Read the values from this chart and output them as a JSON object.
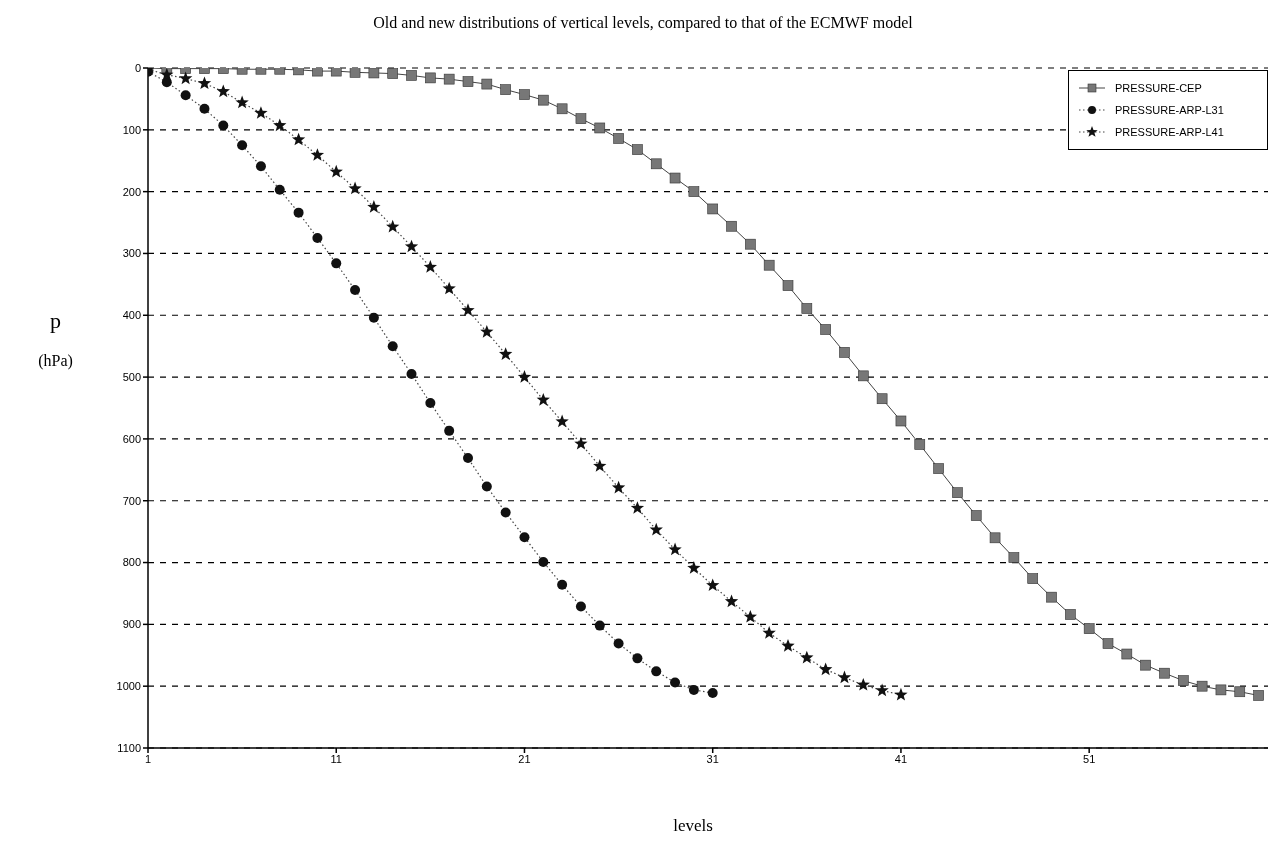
{
  "chart_data": {
    "type": "line",
    "title": "Old and new distributions of vertical levels, compared to that of the ECMWF model",
    "xlabel": "levels",
    "ylabel": "p\n(hPa)",
    "xlim": [
      1,
      60.5
    ],
    "xticks": [
      1,
      11,
      21,
      31,
      41,
      51
    ],
    "ylim": [
      1100,
      0
    ],
    "yticks": [
      0,
      100,
      200,
      300,
      400,
      500,
      600,
      700,
      800,
      900,
      1000,
      1100
    ],
    "grid": "y",
    "legend": "top right",
    "series": [
      {
        "name": "PRESSURE-CEP",
        "color": "#777777",
        "marker": "square",
        "line_style": "solid",
        "x": [
          1,
          2,
          3,
          4,
          5,
          6,
          7,
          8,
          9,
          10,
          11,
          12,
          13,
          14,
          15,
          16,
          17,
          18,
          19,
          20,
          21,
          22,
          23,
          24,
          25,
          26,
          27,
          28,
          29,
          30,
          31,
          32,
          33,
          34,
          35,
          36,
          37,
          38,
          39,
          40,
          41,
          42,
          43,
          44,
          45,
          46,
          47,
          48,
          49,
          50,
          51,
          52,
          53,
          54,
          55,
          56,
          57,
          58,
          59,
          60
        ],
        "values": [
          0,
          1,
          1,
          1,
          1,
          2,
          2,
          2,
          3,
          5,
          5,
          7,
          8,
          9,
          12,
          16,
          18,
          22,
          26,
          35,
          43,
          52,
          66,
          82,
          97,
          114,
          132,
          155,
          178,
          200,
          228,
          256,
          285,
          319,
          352,
          389,
          423,
          460,
          498,
          535,
          571,
          609,
          648,
          687,
          724,
          760,
          792,
          826,
          856,
          884,
          907,
          931,
          948,
          966,
          979,
          991,
          1000,
          1006,
          1009,
          1015
        ]
      },
      {
        "name": "PRESSURE-ARP-L31",
        "color": "#111111",
        "marker": "circle",
        "line_style": "dotted",
        "x": [
          1,
          2,
          3,
          4,
          5,
          6,
          7,
          8,
          9,
          10,
          11,
          12,
          13,
          14,
          15,
          16,
          17,
          18,
          19,
          20,
          21,
          22,
          23,
          24,
          25,
          26,
          27,
          28,
          29,
          30,
          31
        ],
        "values": [
          6,
          23,
          44,
          66,
          93,
          125,
          159,
          197,
          234,
          275,
          316,
          359,
          404,
          450,
          495,
          542,
          587,
          631,
          677,
          719,
          759,
          799,
          836,
          871,
          902,
          931,
          955,
          976,
          994,
          1006,
          1011
        ]
      },
      {
        "name": "PRESSURE-ARP-L41",
        "color": "#111111",
        "marker": "star",
        "line_style": "dotted",
        "x": [
          1,
          2,
          3,
          4,
          5,
          6,
          7,
          8,
          9,
          10,
          11,
          12,
          13,
          14,
          15,
          16,
          17,
          18,
          19,
          20,
          21,
          22,
          23,
          24,
          25,
          26,
          27,
          28,
          29,
          30,
          31,
          32,
          33,
          34,
          35,
          36,
          37,
          38,
          39,
          40,
          41
        ],
        "values": [
          2,
          11,
          17,
          25,
          38,
          56,
          73,
          93,
          116,
          141,
          168,
          195,
          225,
          257,
          289,
          322,
          357,
          392,
          427,
          463,
          500,
          537,
          572,
          608,
          644,
          679,
          712,
          747,
          779,
          809,
          837,
          863,
          888,
          914,
          935,
          954,
          973,
          986,
          998,
          1007,
          1014
        ]
      }
    ]
  }
}
